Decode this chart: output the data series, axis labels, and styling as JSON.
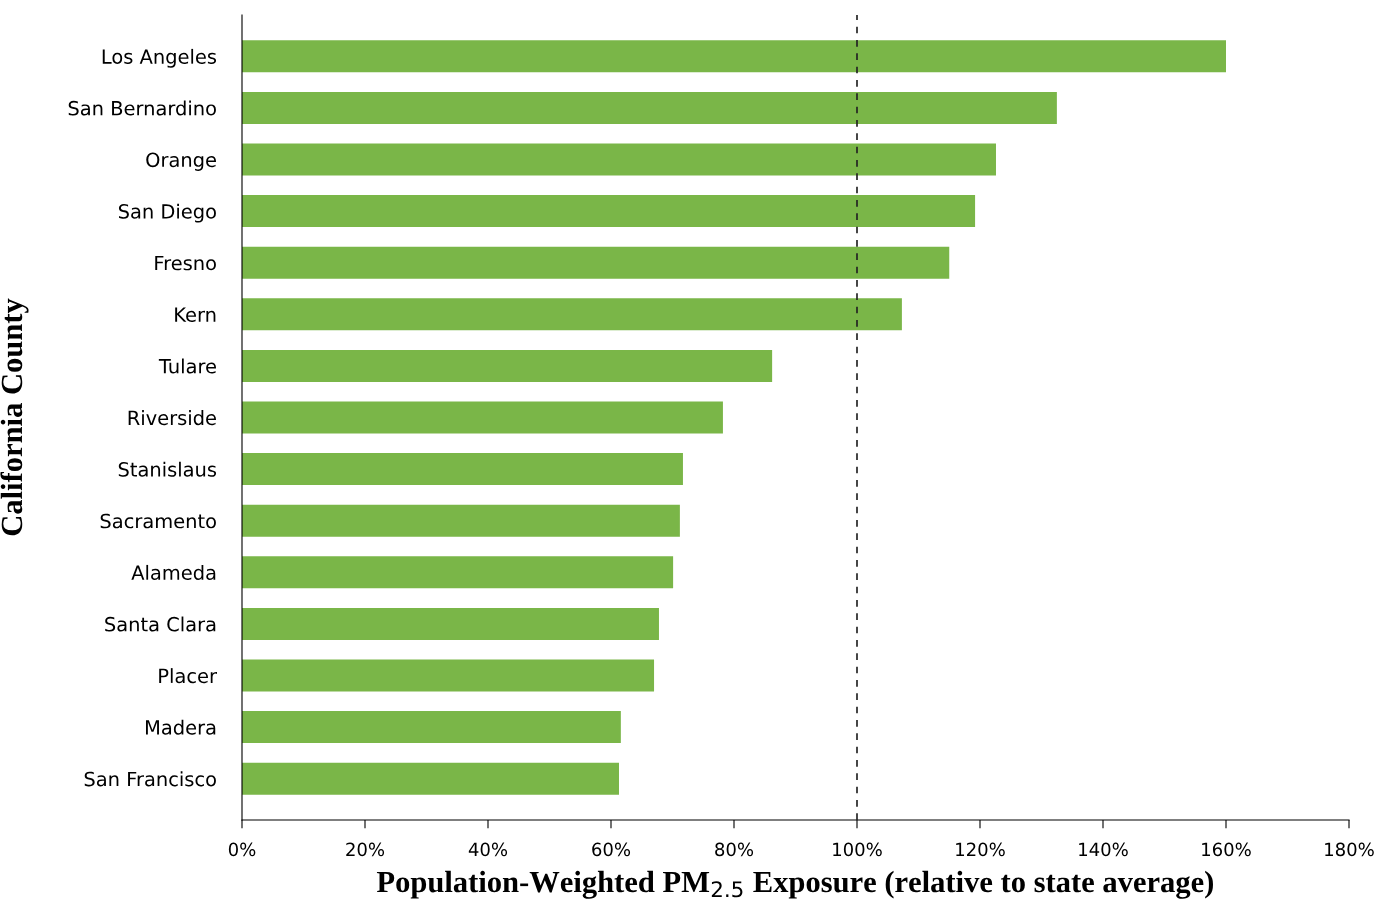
{
  "chart_data": {
    "type": "bar",
    "orientation": "horizontal",
    "xlabel": "Population-Weighted PM$_{2.5}$ Exposure (relative to state average)",
    "ylabel": "California County",
    "categories": [
      "Los Angeles",
      "San Bernardino",
      "Orange",
      "San Diego",
      "Fresno",
      "Kern",
      "Tulare",
      "Riverside",
      "Stanislaus",
      "Sacramento",
      "Alameda",
      "Santa Clara",
      "Placer",
      "Madera",
      "San Francisco"
    ],
    "values": [
      160.0,
      132.5,
      122.6,
      119.2,
      115.0,
      107.3,
      86.2,
      78.2,
      71.7,
      71.2,
      70.1,
      67.8,
      67.0,
      61.6,
      61.3
    ],
    "color": "#7ab648",
    "xlim": [
      0,
      180
    ],
    "xticks": [
      {
        "value": 0,
        "label": "0%"
      },
      {
        "value": 20,
        "label": "20%"
      },
      {
        "value": 40,
        "label": "40%"
      },
      {
        "value": 60,
        "label": "60%"
      },
      {
        "value": 80,
        "label": "80%"
      },
      {
        "value": 100,
        "label": "100%"
      },
      {
        "value": 120,
        "label": "120%"
      },
      {
        "value": 140,
        "label": "140%"
      },
      {
        "value": 160,
        "label": "160%"
      },
      {
        "value": 180,
        "label": "180%"
      }
    ],
    "ref_lines": [
      {
        "axis": "x",
        "value": 100,
        "color": "#222222",
        "line_style": "dashed"
      }
    ],
    "grid": false,
    "legend": false
  }
}
